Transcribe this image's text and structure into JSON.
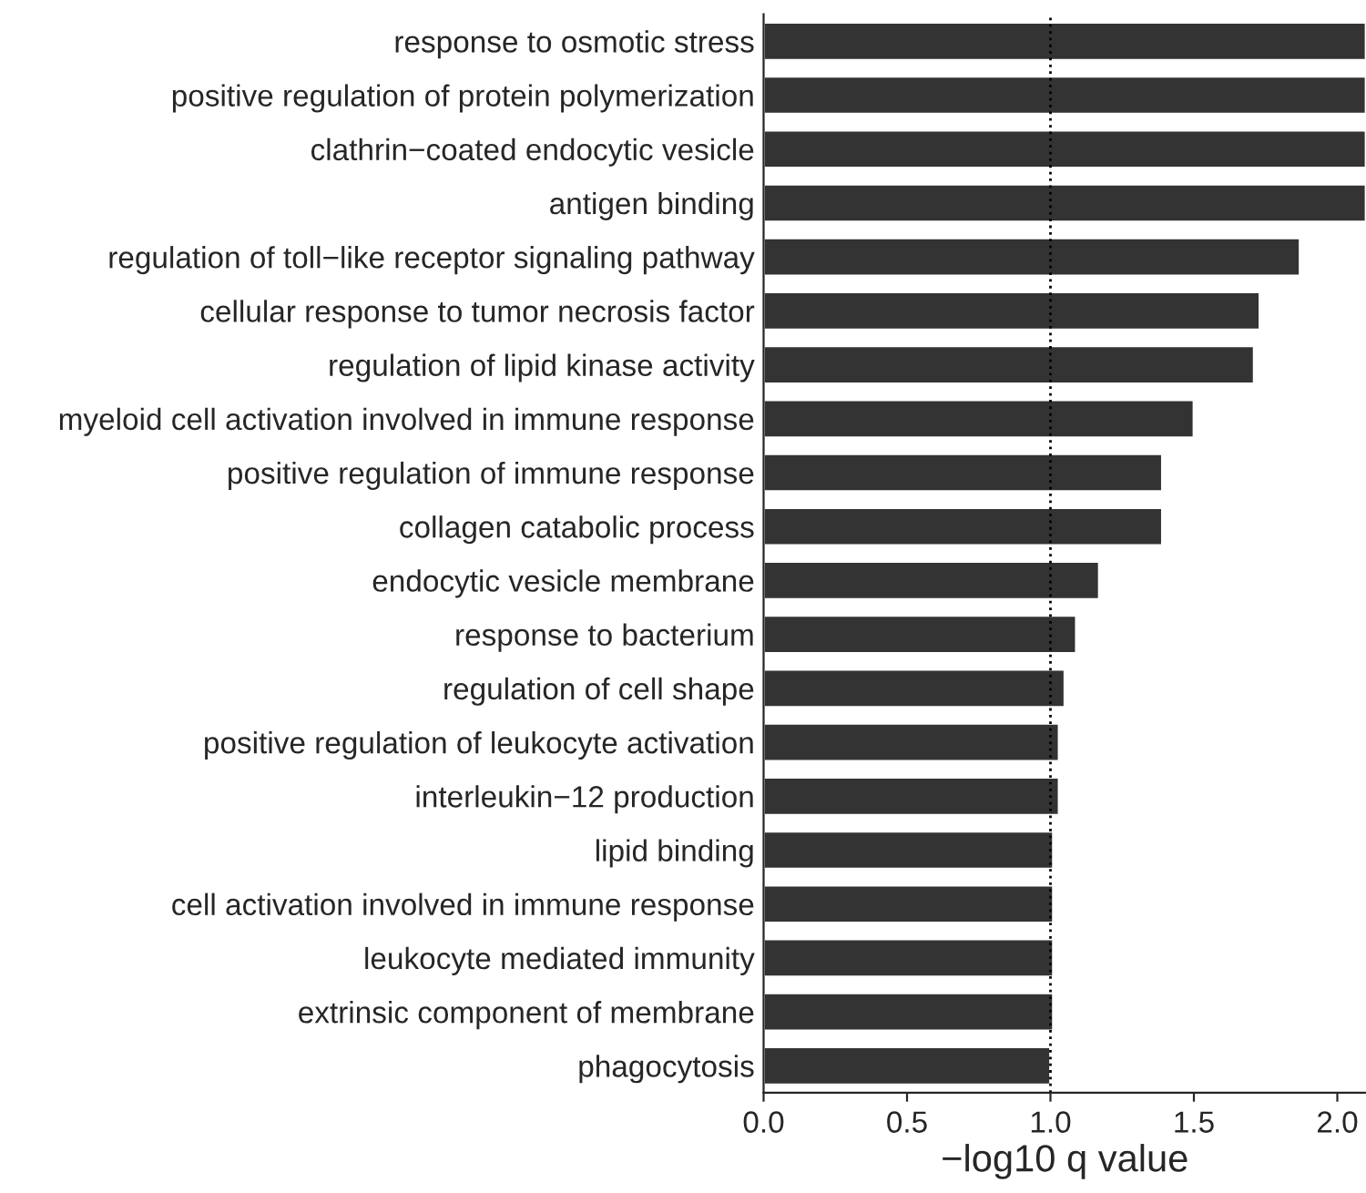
{
  "chart_data": {
    "type": "bar",
    "orientation": "horizontal",
    "xlabel": "−log10 q value",
    "categories": [
      "response to osmotic stress",
      "positive regulation of protein polymerization",
      "clathrin−coated endocytic vesicle",
      "antigen binding",
      "regulation of toll−like receptor signaling pathway",
      "cellular response to tumor necrosis factor",
      "regulation of lipid kinase activity",
      "myeloid cell activation involved in immune response",
      "positive regulation of immune response",
      "collagen catabolic process",
      "endocytic vesicle membrane",
      "response to bacterium",
      "regulation of cell shape",
      "positive regulation of leukocyte activation",
      "interleukin−12 production",
      "lipid binding",
      "cell activation involved in immune response",
      "leukocyte mediated immunity",
      "extrinsic component of membrane",
      "phagocytosis"
    ],
    "values": [
      2.1,
      2.1,
      2.1,
      2.1,
      1.87,
      1.73,
      1.71,
      1.5,
      1.39,
      1.39,
      1.17,
      1.09,
      1.05,
      1.03,
      1.03,
      1.01,
      1.01,
      1.01,
      1.01,
      1.0
    ],
    "color": "#333333",
    "xlim": [
      0,
      2.1
    ],
    "xticks": [
      {
        "value": 0,
        "label": "0.0"
      },
      {
        "value": 0.5,
        "label": "0.5"
      },
      {
        "value": 1,
        "label": "1.0"
      },
      {
        "value": 1.5,
        "label": "1.5"
      },
      {
        "value": 2,
        "label": "2.0"
      }
    ],
    "ref_lines": [
      {
        "axis": "x",
        "value": 1,
        "label": null,
        "color": "#000000",
        "line_style": "dotted"
      }
    ],
    "grid": false,
    "legend": false
  }
}
